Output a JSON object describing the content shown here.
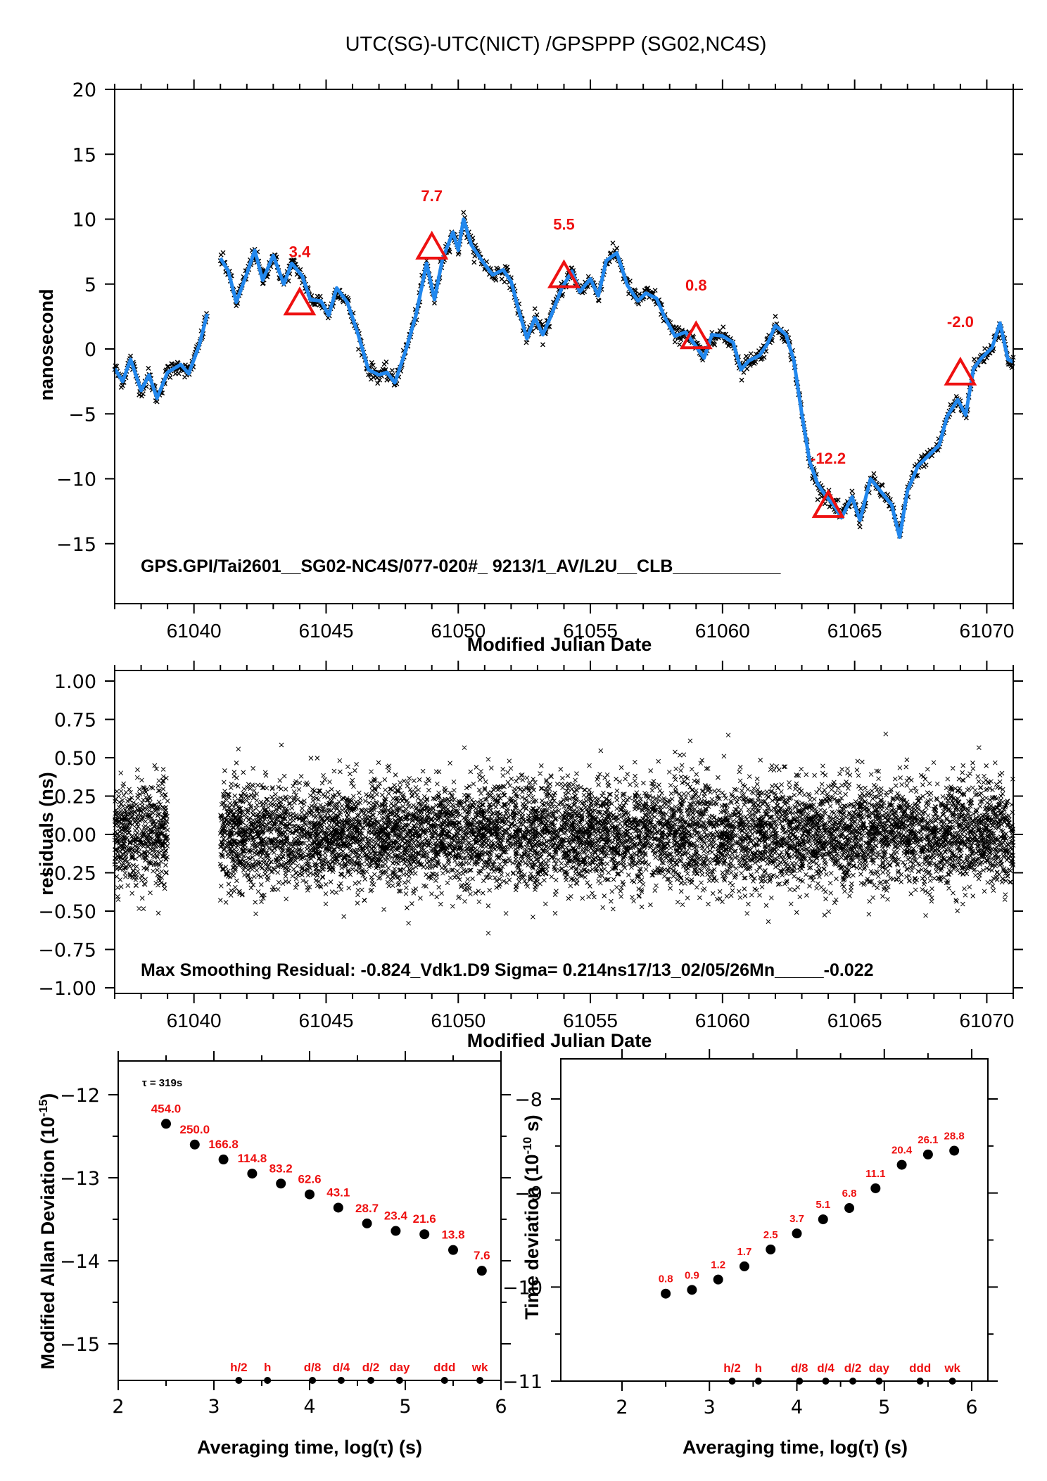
{
  "page": {
    "title": "UTC(SG)-UTC(NICT)  /GPSPPP  (SG02,NC4S)"
  },
  "chart_data": [
    {
      "id": "offset",
      "type": "line",
      "title": "UTC(SG)-UTC(NICT)  /GPSPPP  (SG02,NC4S)",
      "xlabel": "Modified Julian Date",
      "ylabel": "nanosecond",
      "xlim": [
        61037,
        61071
      ],
      "ylim": [
        -18.5,
        20
      ],
      "xticks": [
        61040,
        61045,
        61050,
        61055,
        61060,
        61065,
        61070
      ],
      "yticks": [
        20,
        15,
        10,
        5,
        0,
        -5,
        -10,
        -15
      ],
      "ytick_labels": [
        "20",
        "15",
        "10",
        "5",
        "0",
        "−5",
        "−10",
        "−15"
      ],
      "note": "GPS.GPI/Tai2601__SG02-NC4S/077-020#_  9213/1_AV/L2U__CLB___________",
      "series": [
        {
          "name": "raw",
          "marker": "x",
          "color": "#000000",
          "segments": [
            [
              [
                61037.0,
                -1.5
              ],
              [
                61037.3,
                -2.5
              ],
              [
                61037.6,
                -0.8
              ],
              [
                61038.0,
                -3.2
              ],
              [
                61038.3,
                -2.0
              ],
              [
                61038.6,
                -3.8
              ],
              [
                61039.0,
                -1.8
              ],
              [
                61039.5,
                -1.2
              ],
              [
                61039.8,
                -1.9
              ],
              [
                61040.2,
                0.3
              ],
              [
                61040.5,
                2.7
              ]
            ],
            [
              [
                61041.0,
                7.0
              ],
              [
                61041.3,
                6.0
              ],
              [
                61041.6,
                3.6
              ],
              [
                61042.0,
                5.8
              ],
              [
                61042.3,
                7.6
              ],
              [
                61042.6,
                5.3
              ],
              [
                61043.0,
                7.2
              ],
              [
                61043.4,
                5.0
              ],
              [
                61043.7,
                6.6
              ],
              [
                61044.1,
                5.6
              ],
              [
                61044.4,
                3.8
              ],
              [
                61044.8,
                3.7
              ],
              [
                61045.1,
                2.6
              ],
              [
                61045.4,
                4.7
              ],
              [
                61045.8,
                3.6
              ],
              [
                61046.2,
                1.2
              ],
              [
                61046.6,
                -1.6
              ],
              [
                61047.0,
                -2.0
              ],
              [
                61047.3,
                -1.8
              ],
              [
                61047.6,
                -2.6
              ],
              [
                61048.0,
                -0.2
              ],
              [
                61048.4,
                2.6
              ],
              [
                61048.8,
                6.6
              ],
              [
                61049.1,
                3.8
              ],
              [
                61049.4,
                6.9
              ],
              [
                61049.8,
                9.0
              ],
              [
                61050.0,
                7.6
              ],
              [
                61050.2,
                10.0
              ],
              [
                61050.5,
                8.0
              ],
              [
                61050.9,
                6.8
              ],
              [
                61051.3,
                5.7
              ],
              [
                61051.7,
                6.1
              ],
              [
                61052.0,
                5.2
              ],
              [
                61052.3,
                2.9
              ],
              [
                61052.6,
                0.8
              ],
              [
                61052.9,
                2.4
              ],
              [
                61053.2,
                1.1
              ],
              [
                61053.5,
                2.5
              ],
              [
                61053.9,
                4.6
              ],
              [
                61054.3,
                6.0
              ],
              [
                61054.6,
                4.4
              ],
              [
                61055.0,
                5.4
              ],
              [
                61055.3,
                4.1
              ],
              [
                61055.6,
                6.8
              ],
              [
                61056.0,
                7.4
              ],
              [
                61056.4,
                4.9
              ],
              [
                61056.8,
                3.7
              ],
              [
                61057.1,
                4.3
              ],
              [
                61057.5,
                3.9
              ],
              [
                61057.8,
                2.5
              ],
              [
                61058.2,
                1.0
              ],
              [
                61058.6,
                1.3
              ],
              [
                61059.0,
                0.2
              ],
              [
                61059.3,
                -0.7
              ],
              [
                61059.6,
                1.1
              ],
              [
                61060.0,
                1.0
              ],
              [
                61060.4,
                0.5
              ],
              [
                61060.7,
                -1.6
              ],
              [
                61061.0,
                -0.9
              ],
              [
                61061.4,
                -0.5
              ],
              [
                61061.7,
                0.4
              ],
              [
                61062.0,
                1.8
              ],
              [
                61062.4,
                1.1
              ],
              [
                61062.7,
                -0.9
              ],
              [
                61063.0,
                -5.0
              ],
              [
                61063.3,
                -8.7
              ],
              [
                61063.6,
                -10.4
              ],
              [
                61063.9,
                -11.3
              ],
              [
                61064.2,
                -12.0
              ],
              [
                61064.5,
                -13.0
              ],
              [
                61064.9,
                -11.4
              ],
              [
                61065.2,
                -13.2
              ],
              [
                61065.6,
                -10.0
              ],
              [
                61066.0,
                -11.0
              ],
              [
                61066.4,
                -12.0
              ],
              [
                61066.7,
                -14.5
              ],
              [
                61067.0,
                -10.9
              ],
              [
                61067.4,
                -9.0
              ],
              [
                61067.8,
                -8.2
              ],
              [
                61068.2,
                -7.4
              ],
              [
                61068.5,
                -5.2
              ],
              [
                61068.9,
                -3.9
              ],
              [
                61069.2,
                -5.1
              ],
              [
                61069.5,
                -1.5
              ],
              [
                61069.8,
                -0.7
              ],
              [
                61070.2,
                0.1
              ],
              [
                61070.5,
                2.0
              ],
              [
                61070.8,
                -0.8
              ],
              [
                61071.0,
                -1.0
              ]
            ]
          ]
        },
        {
          "name": "smoothed",
          "color": "#2288ee",
          "segments": "same path as raw (smoothed overlay)"
        }
      ],
      "markers": [
        {
          "x": 61044.0,
          "y": 3.4,
          "label": "3.4"
        },
        {
          "x": 61049.0,
          "y": 7.7,
          "label": "7.7"
        },
        {
          "x": 61054.0,
          "y": 5.5,
          "label": "5.5"
        },
        {
          "x": 61059.0,
          "y": 0.8,
          "label": "0.8"
        },
        {
          "x": 61064.0,
          "y": -12.2,
          "label": "-12.2"
        },
        {
          "x": 61069.0,
          "y": -2.0,
          "label": "-2.0"
        }
      ],
      "marker_color": "#ee1111"
    },
    {
      "id": "residuals",
      "type": "scatter",
      "xlabel": "Modified Julian Date",
      "ylabel": "residuals (ns)",
      "xlim": [
        61037,
        61071
      ],
      "ylim": [
        -1.05,
        1.1
      ],
      "xticks": [
        61040,
        61045,
        61050,
        61055,
        61060,
        61065,
        61070
      ],
      "yticks": [
        1.0,
        0.75,
        0.5,
        0.25,
        0.0,
        -0.25,
        -0.5,
        -0.75,
        -1.0
      ],
      "ytick_labels": [
        "1.00",
        "0.75",
        "0.50",
        "0.25",
        "0.00",
        "−0.25",
        "−0.50",
        "−0.75",
        "−1.00"
      ],
      "coverage": [
        [
          61037.0,
          61039.0
        ],
        [
          61041.0,
          61071.0
        ]
      ],
      "spread_sigma": 0.214,
      "note": "Max Smoothing Residual: -0.824_Vdk1.D9  Sigma= 0.214ns17/13_02/05/26Mn_____-0.022"
    },
    {
      "id": "mdev",
      "type": "scatter",
      "xlabel": "Averaging time, log(τ) (s)",
      "ylabel": "Modified Allan Deviation (10",
      "ylabel_sup": "-15",
      "ylabel_end": ")",
      "xlim": [
        2,
        6
      ],
      "ylim": [
        -15.5,
        -11.5
      ],
      "xticks": [
        2,
        3,
        4,
        5,
        6
      ],
      "yticks": [
        -12,
        -13,
        -14,
        -15
      ],
      "ytick_labels": [
        "−12",
        "−13",
        "−14",
        "−15"
      ],
      "tau_note": "τ = 319s",
      "x": [
        2.5,
        2.8,
        3.1,
        3.4,
        3.7,
        4.0,
        4.3,
        4.6,
        4.9,
        5.2,
        5.5,
        5.8
      ],
      "y": [
        -12.35,
        -12.6,
        -12.78,
        -12.95,
        -13.07,
        -13.2,
        -13.36,
        -13.55,
        -13.64,
        -13.68,
        -13.87,
        -14.12
      ],
      "labels": [
        "454.0",
        "250.0",
        "166.8",
        "114.8",
        "83.2",
        "62.6",
        "43.1",
        "28.7",
        "23.4",
        "21.6",
        "13.8",
        "7.6"
      ],
      "time_markers": [
        {
          "x": 3.26,
          "label": "h/2"
        },
        {
          "x": 3.56,
          "label": "h"
        },
        {
          "x": 4.03,
          "label": "d/8"
        },
        {
          "x": 4.33,
          "label": "d/4"
        },
        {
          "x": 4.64,
          "label": "d/2"
        },
        {
          "x": 4.94,
          "label": "day"
        },
        {
          "x": 5.41,
          "label": "ddd"
        },
        {
          "x": 5.78,
          "label": "wk"
        }
      ]
    },
    {
      "id": "tdev",
      "type": "scatter",
      "xlabel": "Averaging time, log(τ) (s)",
      "ylabel": "Time deviation (10",
      "ylabel_sup": "-10",
      "ylabel_end": " s)",
      "xlim": [
        1.5,
        6.1
      ],
      "ylim": [
        -11,
        -7.5
      ],
      "xticks": [
        2,
        3,
        4,
        5,
        6
      ],
      "yticks": [
        -8,
        -9,
        -10,
        -11
      ],
      "ytick_labels": [
        "−8",
        "−9",
        "−10",
        "−11"
      ],
      "x": [
        2.5,
        2.8,
        3.1,
        3.4,
        3.7,
        4.0,
        4.3,
        4.6,
        4.9,
        5.2,
        5.5,
        5.8
      ],
      "y": [
        -10.07,
        -10.03,
        -9.92,
        -9.78,
        -9.6,
        -9.43,
        -9.28,
        -9.16,
        -8.95,
        -8.7,
        -8.59,
        -8.55
      ],
      "labels": [
        "0.8",
        "0.9",
        "1.2",
        "1.7",
        "2.5",
        "3.7",
        "5.1",
        "6.8",
        "11.1",
        "20.4",
        "26.1",
        "28.8"
      ],
      "time_markers": [
        {
          "x": 3.26,
          "label": "h/2"
        },
        {
          "x": 3.56,
          "label": "h"
        },
        {
          "x": 4.03,
          "label": "d/8"
        },
        {
          "x": 4.33,
          "label": "d/4"
        },
        {
          "x": 4.64,
          "label": "d/2"
        },
        {
          "x": 4.94,
          "label": "day"
        },
        {
          "x": 5.41,
          "label": "ddd"
        },
        {
          "x": 5.78,
          "label": "wk"
        }
      ]
    }
  ]
}
